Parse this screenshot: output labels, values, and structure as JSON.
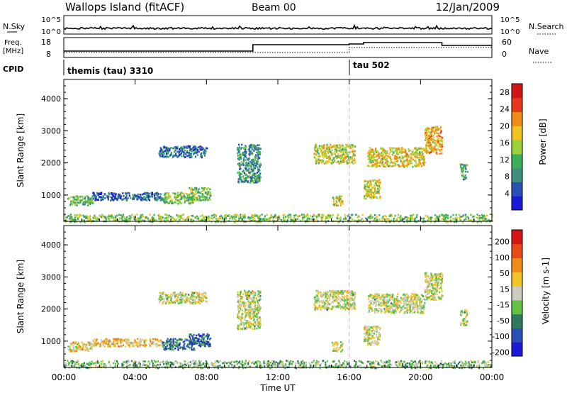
{
  "header": {
    "title": "Wallops Island (fitACF)",
    "beam": "Beam 00",
    "date": "12/Jan/2009"
  },
  "noise_panel": {
    "left_label": "N.Sky",
    "right_label": "N.Search",
    "ticks_left": [
      "10^5",
      "10^0"
    ],
    "ticks_right": [
      "10^5",
      "10^0"
    ]
  },
  "freq_panel": {
    "left_label_line1": "Freq.",
    "left_label_line2": "[MHz]",
    "right_label": "Nave",
    "ticks_left": [
      "18",
      "8"
    ],
    "ticks_right": [
      "60",
      "0"
    ]
  },
  "cpid_panel": {
    "label": "CPID",
    "segments": [
      {
        "start_hour": 0.0,
        "text": "themis (tau) 3310"
      },
      {
        "start_hour": 16.1,
        "text": "tau 502"
      }
    ]
  },
  "x_axis": {
    "label": "Time UT",
    "range_hours": [
      0,
      24
    ],
    "ticks": [
      "00:00",
      "04:00",
      "08:00",
      "12:00",
      "16:00",
      "20:00",
      "00:00"
    ]
  },
  "chart_data": [
    {
      "type": "heatmap",
      "name": "power",
      "ylabel": "Slant Range [km]",
      "yticks": [
        "1000",
        "2000",
        "3000",
        "4000"
      ],
      "ylim": [
        180,
        4600
      ],
      "colorbar_label": "Power [dB]",
      "colorbar_ticks": [
        "4",
        "8",
        "12",
        "16",
        "20",
        "24",
        "28"
      ],
      "colorbar_range": [
        0,
        30
      ],
      "colorscale": [
        "#1a1ad8",
        "#2a50b8",
        "#3f8f7f",
        "#3ab05a",
        "#9bd23a",
        "#f3c21d",
        "#f08b18",
        "#e8361a",
        "#d11414"
      ],
      "marker_line_hour": 16.0,
      "echo_regions": [
        {
          "t0": 0.2,
          "t1": 1.6,
          "r0": 700,
          "r1": 1000,
          "level": 0.4
        },
        {
          "t0": 1.6,
          "t1": 5.5,
          "r0": 850,
          "r1": 1100,
          "level": 0.2
        },
        {
          "t0": 5.5,
          "t1": 7.3,
          "r0": 750,
          "r1": 1100,
          "level": 0.45
        },
        {
          "t0": 7.0,
          "t1": 8.2,
          "r0": 850,
          "r1": 1250,
          "level": 0.45
        },
        {
          "t0": 9.7,
          "t1": 11.0,
          "r0": 1400,
          "r1": 2600,
          "level": 0.3
        },
        {
          "t0": 5.3,
          "t1": 8.0,
          "r0": 2200,
          "r1": 2550,
          "level": 0.2
        },
        {
          "t0": 15.0,
          "t1": 15.6,
          "r0": 700,
          "r1": 1000,
          "level": 0.55
        },
        {
          "t0": 14.0,
          "t1": 16.3,
          "r0": 2000,
          "r1": 2600,
          "level": 0.55
        },
        {
          "t0": 16.8,
          "t1": 17.7,
          "r0": 900,
          "r1": 1500,
          "level": 0.55
        },
        {
          "t0": 17.0,
          "t1": 20.2,
          "r0": 1900,
          "r1": 2500,
          "level": 0.6
        },
        {
          "t0": 20.2,
          "t1": 21.2,
          "r0": 2300,
          "r1": 3150,
          "level": 0.65
        },
        {
          "t0": 22.2,
          "t1": 22.6,
          "r0": 1500,
          "r1": 2000,
          "level": 0.35
        },
        {
          "t0": 0.0,
          "t1": 24.0,
          "r0": 180,
          "r1": 420,
          "level": 0.45
        }
      ]
    },
    {
      "type": "heatmap",
      "name": "velocity",
      "ylabel": "Slant Range [km]",
      "yticks": [
        "1000",
        "2000",
        "3000",
        "4000"
      ],
      "ylim": [
        180,
        4600
      ],
      "colorbar_label": "Velocity [m s-1]",
      "colorbar_ticks": [
        "200",
        "100",
        "50",
        "15",
        "-15",
        "-50",
        "-100",
        "-200"
      ],
      "colorbar_range": [
        -250,
        250
      ],
      "colorscale": [
        "#1a1ad8",
        "#2a50b8",
        "#2f7a5c",
        "#63c145",
        "#cbcbc2",
        "#f5c427",
        "#f08a18",
        "#e84a17",
        "#d51414"
      ],
      "marker_line_hour": 16.0,
      "echo_regions": [
        {
          "t0": 0.2,
          "t1": 1.6,
          "r0": 700,
          "r1": 1000,
          "level": 0.55
        },
        {
          "t0": 1.6,
          "t1": 5.5,
          "r0": 850,
          "r1": 1100,
          "level": 0.6
        },
        {
          "t0": 5.5,
          "t1": 7.3,
          "r0": 750,
          "r1": 1100,
          "level": 0.25
        },
        {
          "t0": 7.0,
          "t1": 8.2,
          "r0": 850,
          "r1": 1250,
          "level": 0.22
        },
        {
          "t0": 9.7,
          "t1": 11.0,
          "r0": 1400,
          "r1": 2600,
          "level": 0.5
        },
        {
          "t0": 5.3,
          "t1": 8.0,
          "r0": 2200,
          "r1": 2550,
          "level": 0.5
        },
        {
          "t0": 15.0,
          "t1": 15.6,
          "r0": 700,
          "r1": 1000,
          "level": 0.5
        },
        {
          "t0": 14.0,
          "t1": 16.3,
          "r0": 2000,
          "r1": 2600,
          "level": 0.5
        },
        {
          "t0": 16.8,
          "t1": 17.7,
          "r0": 900,
          "r1": 1500,
          "level": 0.5
        },
        {
          "t0": 17.0,
          "t1": 20.2,
          "r0": 1900,
          "r1": 2500,
          "level": 0.5
        },
        {
          "t0": 20.2,
          "t1": 21.2,
          "r0": 2300,
          "r1": 3150,
          "level": 0.5
        },
        {
          "t0": 22.2,
          "t1": 22.6,
          "r0": 1500,
          "r1": 2000,
          "level": 0.5
        },
        {
          "t0": 0.0,
          "t1": 24.0,
          "r0": 180,
          "r1": 420,
          "level": 0.4
        }
      ]
    }
  ]
}
